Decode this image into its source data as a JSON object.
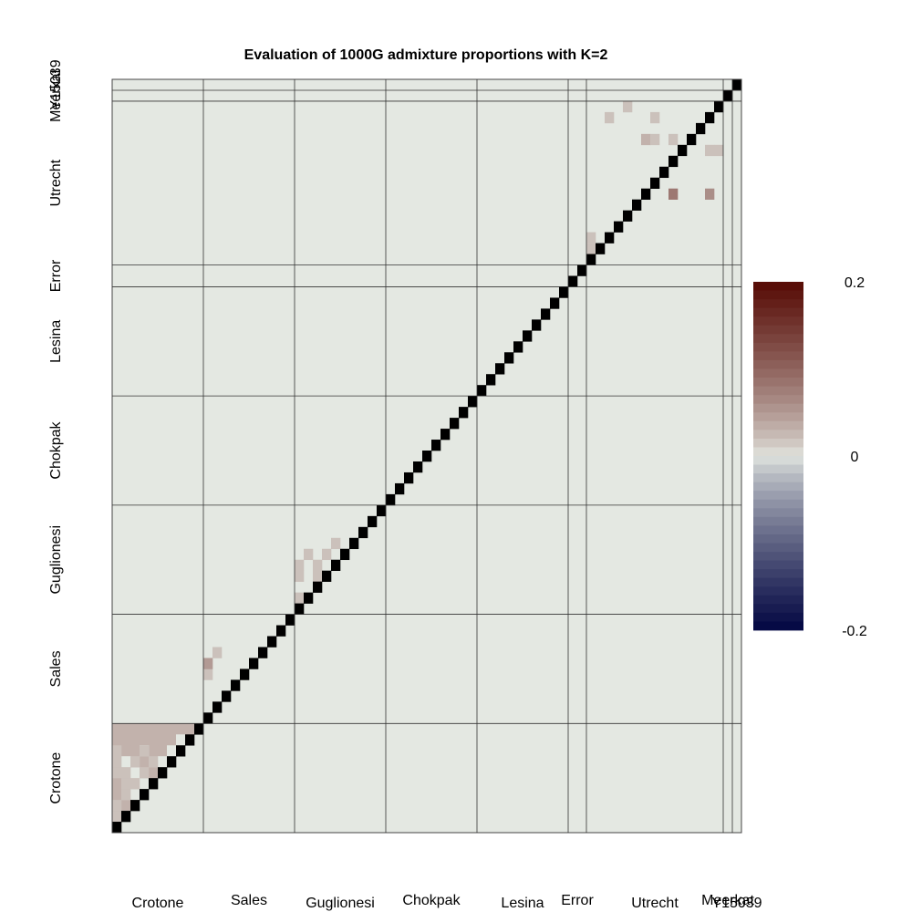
{
  "chart_data": {
    "type": "heatmap",
    "title": "Evaluation of 1000G admixture proportions with K=2",
    "groups": [
      {
        "name": "Crotone",
        "size": 10
      },
      {
        "name": "Sales",
        "size": 10
      },
      {
        "name": "Guglionesi",
        "size": 10
      },
      {
        "name": "Chokpak",
        "size": 10
      },
      {
        "name": "Lesina",
        "size": 10
      },
      {
        "name": "Error",
        "size": 2
      },
      {
        "name": "Utrecht",
        "size": 15
      },
      {
        "name": "Meerkat",
        "size": 1
      },
      {
        "name": "Y15039",
        "size": 1
      }
    ],
    "diagonal": "black",
    "background_value": 0,
    "upper_cells": [
      {
        "i": 0,
        "j": 1,
        "v": 0.02
      },
      {
        "i": 0,
        "j": 2,
        "v": 0.02
      },
      {
        "i": 0,
        "j": 4,
        "v": 0.03
      },
      {
        "i": 0,
        "j": 5,
        "v": 0.02
      },
      {
        "i": 0,
        "j": 6,
        "v": 0.02
      },
      {
        "i": 0,
        "j": 7,
        "v": 0.02
      },
      {
        "i": 1,
        "j": 3,
        "v": 0.02
      },
      {
        "i": 1,
        "j": 4,
        "v": 0.02
      },
      {
        "i": 1,
        "j": 5,
        "v": 0.02
      },
      {
        "i": 2,
        "j": 4,
        "v": 0.02
      },
      {
        "i": 2,
        "j": 6,
        "v": 0.02
      },
      {
        "i": 3,
        "j": 7,
        "v": 0.02
      },
      {
        "i": 3,
        "j": 5,
        "v": 0.02
      },
      {
        "i": 4,
        "j": 6,
        "v": 0.02
      },
      {
        "i": 10,
        "j": 14,
        "v": 0.02
      },
      {
        "i": 10,
        "j": 15,
        "v": 0.05
      },
      {
        "i": 11,
        "j": 16,
        "v": 0.02
      },
      {
        "i": 20,
        "j": 21,
        "v": 0.02
      },
      {
        "i": 20,
        "j": 23,
        "v": 0.02
      },
      {
        "i": 20,
        "j": 24,
        "v": 0.02
      },
      {
        "i": 21,
        "j": 25,
        "v": 0.02
      },
      {
        "i": 22,
        "j": 23,
        "v": 0.02
      },
      {
        "i": 22,
        "j": 24,
        "v": 0.02
      },
      {
        "i": 23,
        "j": 25,
        "v": 0.02
      },
      {
        "i": 24,
        "j": 26,
        "v": 0.02
      },
      {
        "i": 52,
        "j": 53,
        "v": 0.02
      },
      {
        "i": 52,
        "j": 54,
        "v": 0.02
      },
      {
        "i": 54,
        "j": 65,
        "v": 0.02
      },
      {
        "i": 56,
        "j": 66,
        "v": 0.02
      },
      {
        "i": 59,
        "j": 65,
        "v": 0.02
      },
      {
        "i": 58,
        "j": 63,
        "v": 0.03
      },
      {
        "i": 59,
        "j": 63,
        "v": 0.02
      },
      {
        "i": 61,
        "j": 58,
        "v": 0.08
      },
      {
        "i": 61,
        "j": 61,
        "v": 0.02
      },
      {
        "i": 61,
        "j": 63,
        "v": 0.02
      },
      {
        "i": 65,
        "j": 58,
        "v": 0.06
      },
      {
        "i": 65,
        "j": 62,
        "v": 0.02
      },
      {
        "i": 66,
        "j": 62,
        "v": 0.02
      }
    ],
    "lower_block": {
      "group": "Crotone",
      "value": 0.03
    },
    "lower_block_cells": [
      {
        "i": 5,
        "j": 0,
        "v": 0.15
      },
      {
        "i": 3,
        "j": 2,
        "v": 0.0
      },
      {
        "i": 4,
        "j": 3,
        "v": 0.0
      },
      {
        "i": 6,
        "j": 5,
        "v": 0.0
      },
      {
        "i": 7,
        "j": 6,
        "v": 0.0
      },
      {
        "i": 6,
        "j": 1,
        "v": 0.0
      },
      {
        "i": 5,
        "j": 2,
        "v": 0.0
      },
      {
        "i": 7,
        "j": 3,
        "v": 0.0
      },
      {
        "i": 8,
        "j": 7,
        "v": 0.0
      }
    ],
    "colorbar": {
      "min": -0.2,
      "max": 0.2,
      "ticks": [
        "0.2",
        "0",
        "-0.2"
      ]
    }
  }
}
